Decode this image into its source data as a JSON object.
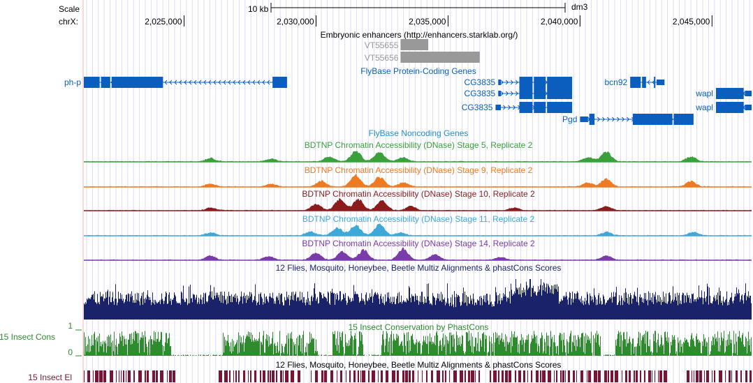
{
  "ruler": {
    "scale_label": "Scale",
    "chrom_label": "chrX:",
    "scalebar_label": "10 kb",
    "assembly": "dm3",
    "positions": [
      "2,025,000",
      "2,030,000",
      "2,035,000",
      "2,040,000",
      "2,045,000"
    ]
  },
  "view": {
    "start": 2021200,
    "end": 2046500
  },
  "tracks": {
    "enhancers": {
      "title": "Embryonic enhancers (http://enhancers.starklab.org/)",
      "color": "#999999",
      "items": [
        {
          "name": "VT55655",
          "start": 2033200,
          "end": 2034250
        },
        {
          "name": "VT55656",
          "start": 2033200,
          "end": 2036200
        }
      ]
    },
    "protein_coding": {
      "title": "FlyBase Protein-Coding Genes",
      "color": "#0a5fbe",
      "genes": [
        {
          "name": "ph-p",
          "strand": "-",
          "start": 2021200,
          "end": 2028900,
          "exons": [
            [
              2021200,
              2021800
            ],
            [
              2021850,
              2022200
            ],
            [
              2022250,
              2024200
            ],
            [
              2028350,
              2028900
            ]
          ]
        },
        {
          "name": "CG3835",
          "strand": "+",
          "start": 2036900,
          "end": 2039700,
          "exons": [
            [
              2036900,
              2037000
            ],
            [
              2037700,
              2038200
            ],
            [
              2038250,
              2038700
            ],
            [
              2038750,
              2039700
            ]
          ]
        },
        {
          "name": "CG3835",
          "strand": "+",
          "start": 2036900,
          "end": 2039700,
          "exons": [
            [
              2036900,
              2037000
            ],
            [
              2037700,
              2038200
            ],
            [
              2038250,
              2038700
            ],
            [
              2038750,
              2039700
            ]
          ]
        },
        {
          "name": "CG3835",
          "strand": "+",
          "start": 2036800,
          "end": 2039700,
          "exons": [
            [
              2036800,
              2037000
            ],
            [
              2037700,
              2038200
            ],
            [
              2038250,
              2038700
            ],
            [
              2038750,
              2039700
            ]
          ]
        },
        {
          "name": "bcn92",
          "strand": "-",
          "start": 2041900,
          "end": 2043200,
          "exons": [
            [
              2041900,
              2042300
            ],
            [
              2042350,
              2042500
            ],
            [
              2042800,
              2042850
            ],
            [
              2042900,
              2043200
            ]
          ]
        },
        {
          "name": "wapl",
          "strand": "-",
          "start": 2045150,
          "end": 2046500,
          "exons": [
            [
              2045150,
              2046200
            ],
            [
              2046250,
              2046500
            ]
          ]
        },
        {
          "name": "wapl",
          "strand": "-",
          "start": 2045150,
          "end": 2046500,
          "exons": [
            [
              2045150,
              2046200
            ],
            [
              2046250,
              2046500
            ]
          ]
        },
        {
          "name": "Pgd",
          "strand": "+",
          "start": 2040000,
          "end": 2044300,
          "exons": [
            [
              2040000,
              2040300
            ],
            [
              2040350,
              2040550
            ],
            [
              2042000,
              2043500
            ],
            [
              2043550,
              2044300
            ]
          ]
        }
      ]
    },
    "noncoding": {
      "title": "FlyBase Noncoding Genes",
      "color": "#1f8ed6"
    },
    "dnase": [
      {
        "title": "BDTNP Chromatin Accessibility (DNase) Stage 5, Replicate 2",
        "color": "#3aa03a",
        "peaks": [
          [
            2026000,
            0.25
          ],
          [
            2028300,
            0.2
          ],
          [
            2030500,
            0.35
          ],
          [
            2031500,
            0.75
          ],
          [
            2032400,
            0.7
          ],
          [
            2033300,
            0.3
          ],
          [
            2040300,
            0.3
          ],
          [
            2041000,
            0.7
          ],
          [
            2044200,
            0.35
          ]
        ]
      },
      {
        "title": "BDTNP Chromatin Accessibility (DNase) Stage 9, Replicate 2",
        "color": "#ef7a20",
        "peaks": [
          [
            2026000,
            0.2
          ],
          [
            2028300,
            0.2
          ],
          [
            2030200,
            0.4
          ],
          [
            2031500,
            0.8
          ],
          [
            2032400,
            0.7
          ],
          [
            2033300,
            0.3
          ],
          [
            2040300,
            0.3
          ],
          [
            2041000,
            0.55
          ],
          [
            2044200,
            0.4
          ]
        ]
      },
      {
        "title": "BDTNP Chromatin Accessibility (DNase) Stage 10, Replicate 2",
        "color": "#8c1c1c",
        "peaks": [
          [
            2026000,
            0.2
          ],
          [
            2030000,
            0.45
          ],
          [
            2030900,
            0.8
          ],
          [
            2031600,
            0.8
          ],
          [
            2032500,
            0.7
          ],
          [
            2033600,
            0.3
          ],
          [
            2037500,
            0.2
          ],
          [
            2041000,
            0.3
          ]
        ]
      },
      {
        "title": "BDTNP Chromatin Accessibility (DNase) Stage 11, Replicate 2",
        "color": "#3ea8d8",
        "peaks": [
          [
            2026000,
            0.2
          ],
          [
            2029800,
            0.3
          ],
          [
            2030800,
            0.55
          ],
          [
            2031500,
            0.75
          ],
          [
            2032400,
            0.8
          ],
          [
            2033200,
            0.2
          ],
          [
            2041000,
            0.25
          ],
          [
            2044300,
            0.25
          ]
        ]
      },
      {
        "title": "BDTNP Chromatin Accessibility (DNase) Stage 14, Replicate 2",
        "color": "#7a3cab",
        "peaks": [
          [
            2026000,
            0.3
          ],
          [
            2028200,
            0.25
          ],
          [
            2030000,
            0.5
          ],
          [
            2031000,
            0.6
          ],
          [
            2031800,
            0.7
          ],
          [
            2033300,
            0.8
          ],
          [
            2034500,
            0.4
          ],
          [
            2037000,
            0.2
          ],
          [
            2041000,
            0.3
          ]
        ]
      }
    ],
    "multiz": {
      "title": "12 Flies, Mosquito, Honeybee, Beetle Multiz Alignments & phastCons Scores",
      "color": "#1a2369"
    },
    "phastcons": {
      "title": "15 Insect Conservation by PhastCons",
      "side_label": "15 Insect Cons",
      "axis_top": "1",
      "axis_bottom": "0",
      "color": "#2e8b2e"
    },
    "elements": {
      "title": "12 Flies, Mosquito, Honeybee, Beetle Multiz Alignments & phastCons Scores",
      "side_label": "15 Insect El",
      "color": "#7a1434"
    }
  }
}
